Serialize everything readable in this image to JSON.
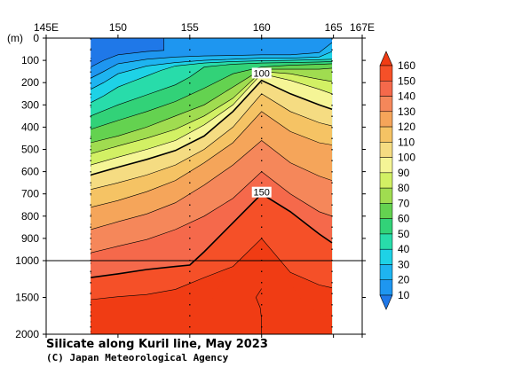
{
  "chart_data": {
    "type": "heatmap",
    "title": "Silicate along Kuril line, May 2023",
    "credit": "(C) Japan Meteorological Agency",
    "x_axis": {
      "ticks": [
        145,
        150,
        155,
        160,
        165,
        167
      ],
      "tick_labels": [
        "145E",
        "150",
        "155",
        "160",
        "165",
        "167E"
      ],
      "range": [
        145,
        167
      ]
    },
    "y_axis": {
      "unit_label": "(m)",
      "upper_ticks": [
        0,
        100,
        200,
        300,
        400,
        500,
        600,
        700,
        800,
        900,
        1000
      ],
      "lower_ticks": [
        1500,
        2000
      ],
      "tick_labels": [
        "0",
        "100",
        "200",
        "300",
        "400",
        "500",
        "600",
        "700",
        "800",
        "900",
        "1000",
        "1500",
        "2000"
      ],
      "upper_range": [
        0,
        1000
      ],
      "lower_range": [
        1000,
        2000
      ]
    },
    "section_extent": {
      "x_start": 148.1,
      "x_end": 164.9
    },
    "stations": [
      148.1,
      155,
      160,
      164.9
    ],
    "colorbar": {
      "levels": [
        10,
        20,
        30,
        40,
        50,
        60,
        70,
        80,
        90,
        100,
        110,
        120,
        130,
        140,
        150,
        160
      ],
      "labels": [
        "160",
        "150",
        "140",
        "130",
        "120",
        "110",
        "100",
        "90",
        "80",
        "70",
        "60",
        "50",
        "40",
        "30",
        "20",
        "10"
      ],
      "colors": [
        "#1f78e8",
        "#1e96f0",
        "#1eb4f0",
        "#1ed2e6",
        "#28dcaa",
        "#32d278",
        "#64d250",
        "#a0dc50",
        "#d2f064",
        "#f5f596",
        "#f5dc82",
        "#f5c364",
        "#f5a55a",
        "#f5875a",
        "#f5694b",
        "#f55028",
        "#f03c14"
      ]
    },
    "contour_labels": [
      {
        "text": "100",
        "x": 160,
        "y": 165
      },
      {
        "text": "150",
        "x": 160,
        "y": 700
      }
    ],
    "contours": [
      {
        "level": 10,
        "points": [
          [
            148.1,
            130
          ],
          [
            149,
            100
          ],
          [
            150,
            75
          ],
          [
            152,
            60
          ],
          [
            153.2,
            55
          ],
          [
            153.2,
            0
          ]
        ]
      },
      {
        "level": 20,
        "points": [
          [
            148.1,
            180
          ],
          [
            149,
            150
          ],
          [
            150,
            115
          ],
          [
            152,
            95
          ],
          [
            154,
            85
          ],
          [
            156,
            80
          ],
          [
            158,
            78
          ],
          [
            160,
            75
          ],
          [
            162,
            75
          ],
          [
            164,
            65
          ],
          [
            164.9,
            20
          ]
        ]
      },
      {
        "level": 30,
        "points": [
          [
            148.1,
            230
          ],
          [
            149,
            200
          ],
          [
            150,
            160
          ],
          [
            152,
            125
          ],
          [
            154,
            110
          ],
          [
            156,
            100
          ],
          [
            158,
            95
          ],
          [
            160,
            90
          ],
          [
            162,
            90
          ],
          [
            164,
            85
          ],
          [
            164.9,
            60
          ]
        ]
      },
      {
        "level": 40,
        "points": [
          [
            148.1,
            290
          ],
          [
            149,
            260
          ],
          [
            150,
            220
          ],
          [
            151,
            195
          ],
          [
            152,
            170
          ],
          [
            153,
            145
          ],
          [
            154,
            125
          ],
          [
            156,
            112
          ],
          [
            158,
            105
          ],
          [
            160,
            102
          ],
          [
            162,
            100
          ],
          [
            164,
            97
          ],
          [
            164.9,
            95
          ]
        ]
      },
      {
        "level": 50,
        "points": [
          [
            148.1,
            350
          ],
          [
            150,
            300
          ],
          [
            152,
            255
          ],
          [
            154,
            210
          ],
          [
            155,
            175
          ],
          [
            156,
            130
          ],
          [
            158,
            117
          ],
          [
            160,
            112
          ],
          [
            162,
            110
          ],
          [
            164,
            107
          ],
          [
            164.9,
            105
          ]
        ]
      },
      {
        "level": 60,
        "points": [
          [
            148.1,
            410
          ],
          [
            150,
            370
          ],
          [
            152,
            330
          ],
          [
            154,
            285
          ],
          [
            156,
            225
          ],
          [
            158,
            160
          ],
          [
            160,
            130
          ],
          [
            162,
            122
          ],
          [
            164,
            118
          ],
          [
            164.9,
            115
          ]
        ]
      },
      {
        "level": 70,
        "points": [
          [
            148.1,
            470
          ],
          [
            150,
            440
          ],
          [
            152,
            400
          ],
          [
            154,
            350
          ],
          [
            156,
            300
          ],
          [
            158,
            220
          ],
          [
            160,
            140
          ],
          [
            162,
            140
          ],
          [
            164,
            140
          ],
          [
            164.9,
            135
          ]
        ]
      },
      {
        "level": 80,
        "points": [
          [
            148.1,
            520
          ],
          [
            150,
            485
          ],
          [
            152,
            450
          ],
          [
            154,
            410
          ],
          [
            156,
            350
          ],
          [
            158,
            270
          ],
          [
            160,
            150
          ],
          [
            162,
            160
          ],
          [
            164,
            185
          ],
          [
            164.9,
            195
          ]
        ]
      },
      {
        "level": 90,
        "points": [
          [
            148.1,
            570
          ],
          [
            150,
            535
          ],
          [
            152,
            500
          ],
          [
            154,
            460
          ],
          [
            156,
            390
          ],
          [
            158,
            300
          ],
          [
            160,
            160
          ],
          [
            162,
            190
          ],
          [
            164,
            230
          ],
          [
            164.9,
            250
          ]
        ]
      },
      {
        "level": 100,
        "points": [
          [
            148.1,
            615
          ],
          [
            150,
            580
          ],
          [
            152,
            545
          ],
          [
            154,
            505
          ],
          [
            156,
            440
          ],
          [
            158,
            330
          ],
          [
            160,
            190
          ],
          [
            162,
            250
          ],
          [
            164,
            300
          ],
          [
            164.9,
            320
          ]
        ]
      },
      {
        "level": 110,
        "points": [
          [
            148.1,
            680
          ],
          [
            150,
            650
          ],
          [
            152,
            615
          ],
          [
            154,
            570
          ],
          [
            156,
            500
          ],
          [
            158,
            400
          ],
          [
            160,
            250
          ],
          [
            162,
            330
          ],
          [
            164,
            380
          ],
          [
            164.9,
            395
          ]
        ]
      },
      {
        "level": 120,
        "points": [
          [
            148.1,
            760
          ],
          [
            150,
            730
          ],
          [
            152,
            690
          ],
          [
            154,
            640
          ],
          [
            156,
            560
          ],
          [
            158,
            470
          ],
          [
            160,
            330
          ],
          [
            162,
            420
          ],
          [
            164,
            470
          ],
          [
            164.9,
            480
          ]
        ]
      },
      {
        "level": 130,
        "points": [
          [
            148.1,
            860
          ],
          [
            150,
            825
          ],
          [
            152,
            790
          ],
          [
            154,
            740
          ],
          [
            156,
            660
          ],
          [
            158,
            570
          ],
          [
            160,
            460
          ],
          [
            162,
            560
          ],
          [
            164,
            620
          ],
          [
            164.9,
            640
          ]
        ]
      },
      {
        "level": 140,
        "points": [
          [
            148.1,
            965
          ],
          [
            150,
            935
          ],
          [
            152,
            905
          ],
          [
            154,
            860
          ],
          [
            156,
            800
          ],
          [
            158,
            720
          ],
          [
            160,
            600
          ],
          [
            162,
            700
          ],
          [
            164,
            780
          ],
          [
            164.9,
            800
          ]
        ]
      },
      {
        "level": 150,
        "points": [
          [
            148.1,
            1230
          ],
          [
            150,
            1180
          ],
          [
            152,
            1120
          ],
          [
            154,
            1080
          ],
          [
            155,
            1060
          ],
          [
            156,
            960
          ],
          [
            158,
            830
          ],
          [
            160,
            700
          ],
          [
            162,
            780
          ],
          [
            164,
            880
          ],
          [
            164.9,
            920
          ]
        ]
      },
      {
        "level": 155,
        "points": [
          [
            148.1,
            1530
          ],
          [
            150,
            1490
          ],
          [
            152,
            1460
          ],
          [
            154,
            1390
          ],
          [
            156,
            1230
          ],
          [
            158,
            1080
          ],
          [
            160,
            900
          ],
          [
            162,
            1160
          ],
          [
            164,
            1330
          ],
          [
            164.9,
            1370
          ]
        ]
      }
    ],
    "inner_contour": {
      "level": 160,
      "points": [
        [
          160,
          1380
        ],
        [
          159.6,
          1500
        ],
        [
          159.9,
          1640
        ],
        [
          160,
          1800
        ],
        [
          160,
          2000
        ]
      ]
    }
  }
}
